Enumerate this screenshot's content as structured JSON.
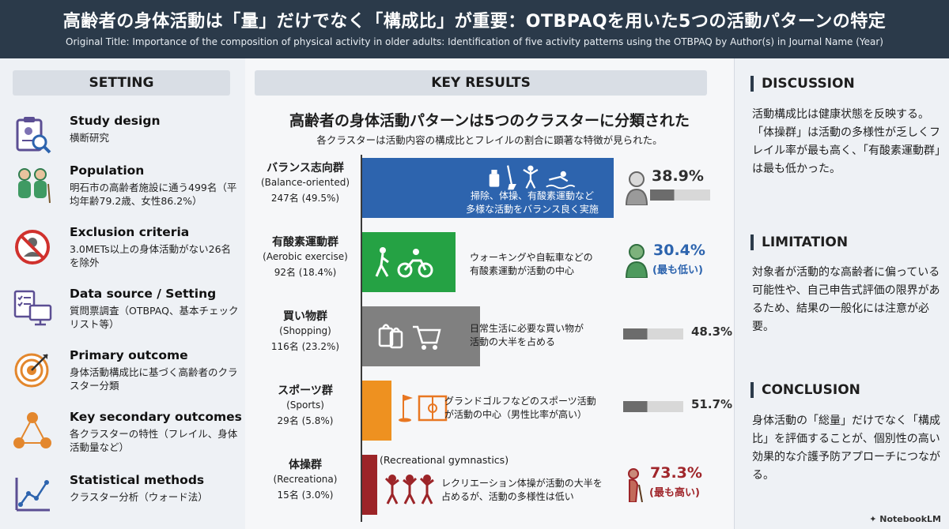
{
  "header": {
    "title": "高齢者の身体活動は「量」だけでなく「構成比」が重要：OTBPAQを用いた5つの活動パターンの特定",
    "subtitle": "Original Title: Importance of the composition of physical activity in older adults: Identification of five activity patterns using the OTBPAQ by Author(s) in Journal Name (Year)"
  },
  "setting": {
    "heading": "SETTING",
    "items": [
      {
        "label": "Study design",
        "text": "横断研究",
        "icon": "clipboard-search-icon"
      },
      {
        "label": "Population",
        "text": "明石市の高齢者施設に通う499名（平均年齢79.2歳、女性86.2%）",
        "icon": "elderly-couple-icon"
      },
      {
        "label": "Exclusion criteria",
        "text": "3.0METs以上の身体活動がない26名を除外",
        "icon": "no-entry-icon"
      },
      {
        "label": "Data source / Setting",
        "text": "質問票調査（OTBPAQ、基本チェックリスト等）",
        "icon": "questionnaire-monitor-icon"
      },
      {
        "label": "Primary outcome",
        "text": "身体活動構成比に基づく高齢者のクラスター分類",
        "icon": "target-icon"
      },
      {
        "label": "Key secondary outcomes",
        "text": "各クラスターの特性（フレイル、身体活動量など）",
        "icon": "network-icon"
      },
      {
        "label": "Statistical methods",
        "text": "クラスター分析（ウォード法）",
        "icon": "line-chart-icon"
      }
    ]
  },
  "results": {
    "heading": "KEY RESULTS",
    "title": "高齢者の身体活動パターンは5つのクラスターに分類された",
    "subtitle": "各クラスターは活動内容の構成比とフレイルの割合に顕著な特徴が見られた。",
    "clusters": [
      {
        "name": "バランス志向群",
        "en": "(Balance-oriented)",
        "n": "247名 (49.5%)",
        "share": 49.5,
        "color": "#2d64ae",
        "desc1": "掃除、体操、有酸素運動など",
        "desc2": "多様な活動をバランス良く実施",
        "frailty": "38.9%",
        "note": "",
        "frailty_value": 38.9
      },
      {
        "name": "有酸素運動群",
        "en": "(Aerobic exercise)",
        "n": "92名 (18.4%)",
        "share": 18.4,
        "color": "#25a244",
        "desc1": "ウォーキングや自転車などの",
        "desc2": "有酸素運動が活動の中心",
        "frailty": "30.4%",
        "note": "(最も低い)",
        "frailty_value": 30.4
      },
      {
        "name": "買い物群",
        "en": "(Shopping)",
        "n": "116名 (23.2%)",
        "share": 23.2,
        "color": "#808080",
        "desc1": "日常生活に必要な買い物が",
        "desc2": "活動の大半を占める",
        "frailty": "48.3%",
        "note": "",
        "frailty_value": 48.3
      },
      {
        "name": "スポーツ群",
        "en": "(Sports)",
        "n": "29名 (5.8%)",
        "share": 5.8,
        "color": "#ee9120",
        "desc1": "グランドゴルフなどのスポーツ活動",
        "desc2": "が活動の中心（男性比率が高い）",
        "frailty": "51.7%",
        "note": "",
        "frailty_value": 51.7
      },
      {
        "name": "体操群",
        "en": "(Recreationa)",
        "n": "15名 (3.0%)",
        "share": 3.0,
        "color": "#9c2428",
        "extra": "(Recreational gymnastics)",
        "desc1": "レクリエーション体操が活動の大半を",
        "desc2": "占めるが、活動の多様性は低い",
        "frailty": "73.3%",
        "note": "(最も高い)",
        "frailty_value": 73.3
      }
    ]
  },
  "discussion": {
    "heading": "DISCUSSION",
    "text": "活動構成比は健康状態を反映する。「体操群」は活動の多様性が乏しくフレイル率が最も高く、「有酸素運動群」は最も低かった。"
  },
  "limitation": {
    "heading": "LIMITATION",
    "text": "対象者が活動的な高齢者に偏っている可能性や、自己申告式評価の限界があるため、結果の一般化には注意が必要。"
  },
  "conclusion": {
    "heading": "CONCLUSION",
    "text": "身体活動の「総量」だけでなく「構成比」を評価することが、個別性の高い効果的な介護予防アプローチにつながる。"
  },
  "footer": {
    "brand": "NotebookLM"
  }
}
